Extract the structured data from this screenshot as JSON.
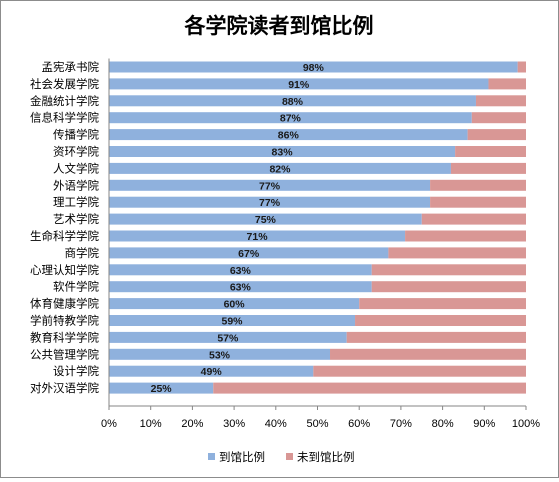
{
  "chart_data": {
    "type": "bar",
    "orientation": "horizontal",
    "stacked": true,
    "title": "各学院读者到馆比例",
    "categories": [
      "孟宪承书院",
      "社会发展学院",
      "金融统计学院",
      "信息科学学院",
      "传播学院",
      "资环学院",
      "人文学院",
      "外语学院",
      "理工学院",
      "艺术学院",
      "生命科学学院",
      "商学院",
      "心理认知学院",
      "软件学院",
      "体育健康学院",
      "学前特教学院",
      "教育科学学院",
      "公共管理学院",
      "设计学院",
      "对外汉语学院"
    ],
    "series": [
      {
        "name": "到馆比例",
        "color": "#8fb1dd",
        "values": [
          98,
          91,
          88,
          87,
          86,
          83,
          82,
          77,
          77,
          75,
          71,
          67,
          63,
          63,
          60,
          59,
          57,
          53,
          49,
          25
        ]
      },
      {
        "name": "未到馆比例",
        "color": "#d99795",
        "values": [
          2,
          9,
          12,
          13,
          14,
          17,
          18,
          23,
          23,
          25,
          29,
          33,
          37,
          37,
          40,
          41,
          43,
          47,
          51,
          75
        ]
      }
    ],
    "data_labels": [
      "98%",
      "91%",
      "88%",
      "87%",
      "86%",
      "83%",
      "82%",
      "77%",
      "77%",
      "75%",
      "71%",
      "67%",
      "63%",
      "63%",
      "60%",
      "59%",
      "57%",
      "53%",
      "49%",
      "25%"
    ],
    "xlim": [
      0,
      100
    ],
    "x_ticks": [
      "0%",
      "10%",
      "20%",
      "30%",
      "40%",
      "50%",
      "60%",
      "70%",
      "80%",
      "90%",
      "100%"
    ],
    "grid": false,
    "legend_position": "bottom"
  }
}
